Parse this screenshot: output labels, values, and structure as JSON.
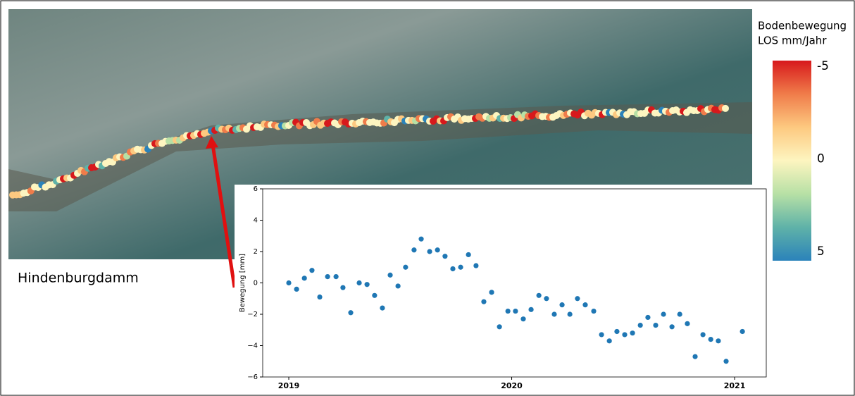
{
  "map_label": "Hindenburgdamm",
  "colorbar": {
    "title_lines": [
      "Bodenbewegung",
      "LOS mm/Jahr"
    ],
    "lim": [
      -5.3,
      5.5
    ],
    "ticks": [
      -5,
      0,
      5
    ],
    "colors": [
      "#d7191c",
      "#f07c4a",
      "#fdc980",
      "#fdf5c0",
      "#b7e0a5",
      "#5fb2a8",
      "#2b83ba"
    ]
  },
  "chart_data": {
    "type": "scatter",
    "ylabel": "Bewegung [mm]",
    "color": "#1f77b4",
    "xlim": [
      2018.883,
      2021.142
    ],
    "ylim": [
      -6,
      6
    ],
    "xticks": [
      2019,
      2020,
      2021
    ],
    "yticks": [
      {
        "value": -6,
        "label": "−6"
      },
      {
        "value": -4,
        "label": "−4"
      },
      {
        "value": -2,
        "label": "−2"
      },
      0,
      2,
      4,
      6
    ],
    "x": [
      2019.0,
      2019.035,
      2019.07,
      2019.104,
      2019.139,
      2019.174,
      2019.212,
      2019.243,
      2019.278,
      2019.316,
      2019.351,
      2019.385,
      2019.42,
      2019.455,
      2019.49,
      2019.524,
      2019.562,
      2019.594,
      2019.632,
      2019.667,
      2019.701,
      2019.736,
      2019.771,
      2019.806,
      2019.84,
      2019.875,
      2019.91,
      2019.945,
      2019.983,
      2020.017,
      2020.052,
      2020.087,
      2020.122,
      2020.156,
      2020.191,
      2020.226,
      2020.261,
      2020.295,
      2020.33,
      2020.368,
      2020.403,
      2020.438,
      2020.472,
      2020.507,
      2020.542,
      2020.577,
      2020.611,
      2020.646,
      2020.681,
      2020.719,
      2020.754,
      2020.788,
      2020.823,
      2020.858,
      2020.893,
      2020.927,
      2020.962,
      2021.035
    ],
    "values": [
      0,
      -0.4,
      0.3,
      0.8,
      -0.9,
      0.4,
      0.4,
      -0.3,
      -1.9,
      0,
      -0.1,
      -0.8,
      -1.6,
      0.5,
      -0.2,
      1.0,
      2.1,
      2.8,
      2.0,
      2.1,
      1.7,
      0.9,
      1.0,
      1.8,
      1.1,
      -1.2,
      -0.6,
      -2.8,
      -1.8,
      -1.8,
      -2.3,
      -1.7,
      -0.8,
      -1.0,
      -2.0,
      -1.4,
      -2.0,
      -1.0,
      -1.4,
      -1.8,
      -3.3,
      -3.7,
      -3.1,
      -3.3,
      -3.2,
      -2.7,
      -2.2,
      -2.7,
      -2.0,
      -2.8,
      -2.0,
      -2.6,
      -4.7,
      -3.3,
      -3.6,
      -3.7,
      -5.0,
      -3.1
    ]
  }
}
